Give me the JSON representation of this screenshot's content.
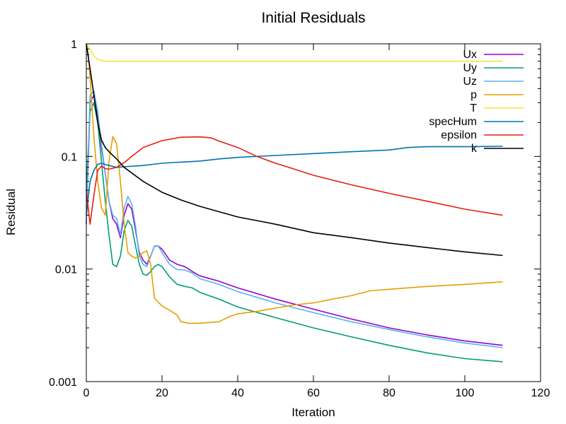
{
  "chart_data": {
    "type": "line",
    "title": "Initial Residuals",
    "xlabel": "Iteration",
    "ylabel": "Residual",
    "xlim": [
      0,
      120
    ],
    "ylim": [
      0.001,
      1
    ],
    "yscale": "log",
    "grid": false,
    "legend_position": "top-right",
    "x_ticks": [
      0,
      20,
      40,
      60,
      80,
      100,
      120
    ],
    "x_tick_labels": [
      "0",
      "20",
      "40",
      "60",
      "80",
      "100",
      "120"
    ],
    "y_ticks": [
      0.001,
      0.01,
      0.1,
      1
    ],
    "y_tick_labels": [
      "0.001",
      "0.01",
      "0.1",
      "1"
    ],
    "series": [
      {
        "name": "Ux",
        "color": "#9400d3",
        "points": [
          [
            0,
            0.025
          ],
          [
            1,
            0.3
          ],
          [
            2,
            0.35
          ],
          [
            3,
            0.22
          ],
          [
            4,
            0.12
          ],
          [
            5,
            0.07
          ],
          [
            6,
            0.04
          ],
          [
            7,
            0.028
          ],
          [
            8,
            0.025
          ],
          [
            9,
            0.019
          ],
          [
            10,
            0.03
          ],
          [
            11,
            0.038
          ],
          [
            12,
            0.034
          ],
          [
            13,
            0.022
          ],
          [
            14,
            0.014
          ],
          [
            15,
            0.012
          ],
          [
            16,
            0.011
          ],
          [
            17,
            0.013
          ],
          [
            18,
            0.016
          ],
          [
            19,
            0.016
          ],
          [
            20,
            0.015
          ],
          [
            22,
            0.012
          ],
          [
            24,
            0.011
          ],
          [
            26,
            0.0105
          ],
          [
            28,
            0.0095
          ],
          [
            30,
            0.0087
          ],
          [
            35,
            0.0078
          ],
          [
            40,
            0.0068
          ],
          [
            50,
            0.0054
          ],
          [
            60,
            0.0044
          ],
          [
            70,
            0.0036
          ],
          [
            80,
            0.003
          ],
          [
            90,
            0.0026
          ],
          [
            100,
            0.0023
          ],
          [
            110,
            0.0021
          ]
        ]
      },
      {
        "name": "Uy",
        "color": "#009e73",
        "points": [
          [
            0,
            0.05
          ],
          [
            1,
            0.25
          ],
          [
            2,
            0.3
          ],
          [
            3,
            0.2
          ],
          [
            4,
            0.09
          ],
          [
            5,
            0.04
          ],
          [
            6,
            0.02
          ],
          [
            7,
            0.011
          ],
          [
            8,
            0.0105
          ],
          [
            9,
            0.013
          ],
          [
            10,
            0.022
          ],
          [
            11,
            0.027
          ],
          [
            12,
            0.024
          ],
          [
            13,
            0.016
          ],
          [
            14,
            0.011
          ],
          [
            15,
            0.009
          ],
          [
            16,
            0.0088
          ],
          [
            17,
            0.0095
          ],
          [
            18,
            0.0105
          ],
          [
            19,
            0.011
          ],
          [
            20,
            0.0105
          ],
          [
            22,
            0.0085
          ],
          [
            24,
            0.0073
          ],
          [
            26,
            0.007
          ],
          [
            28,
            0.0068
          ],
          [
            30,
            0.0062
          ],
          [
            35,
            0.0054
          ],
          [
            40,
            0.0046
          ],
          [
            50,
            0.0037
          ],
          [
            60,
            0.003
          ],
          [
            70,
            0.0025
          ],
          [
            80,
            0.0021
          ],
          [
            90,
            0.0018
          ],
          [
            100,
            0.0016
          ],
          [
            110,
            0.0015
          ]
        ]
      },
      {
        "name": "Uz",
        "color": "#56b4e9",
        "points": [
          [
            0,
            0.025
          ],
          [
            1,
            0.35
          ],
          [
            2,
            0.38
          ],
          [
            3,
            0.25
          ],
          [
            4,
            0.13
          ],
          [
            5,
            0.07
          ],
          [
            6,
            0.04
          ],
          [
            7,
            0.03
          ],
          [
            8,
            0.028
          ],
          [
            9,
            0.02
          ],
          [
            10,
            0.035
          ],
          [
            11,
            0.044
          ],
          [
            12,
            0.038
          ],
          [
            13,
            0.024
          ],
          [
            14,
            0.013
          ],
          [
            15,
            0.011
          ],
          [
            16,
            0.0105
          ],
          [
            17,
            0.013
          ],
          [
            18,
            0.016
          ],
          [
            19,
            0.016
          ],
          [
            20,
            0.014
          ],
          [
            22,
            0.011
          ],
          [
            24,
            0.0099
          ],
          [
            26,
            0.0098
          ],
          [
            28,
            0.0092
          ],
          [
            30,
            0.0082
          ],
          [
            35,
            0.0073
          ],
          [
            40,
            0.0063
          ],
          [
            50,
            0.005
          ],
          [
            60,
            0.0041
          ],
          [
            70,
            0.0034
          ],
          [
            80,
            0.0029
          ],
          [
            90,
            0.0025
          ],
          [
            100,
            0.0022
          ],
          [
            110,
            0.002
          ]
        ]
      },
      {
        "name": "p",
        "color": "#e69f00",
        "points": [
          [
            0,
            1.0
          ],
          [
            0.5,
            0.8
          ],
          [
            1,
            0.5
          ],
          [
            2,
            0.15
          ],
          [
            3,
            0.06
          ],
          [
            4,
            0.035
          ],
          [
            5,
            0.03
          ],
          [
            6,
            0.09
          ],
          [
            7,
            0.15
          ],
          [
            8,
            0.13
          ],
          [
            9,
            0.06
          ],
          [
            10,
            0.025
          ],
          [
            11,
            0.014
          ],
          [
            12,
            0.013
          ],
          [
            13,
            0.0125
          ],
          [
            14,
            0.013
          ],
          [
            15,
            0.014
          ],
          [
            16,
            0.0145
          ],
          [
            17,
            0.011
          ],
          [
            18,
            0.0055
          ],
          [
            20,
            0.0047
          ],
          [
            22,
            0.0043
          ],
          [
            24,
            0.0039
          ],
          [
            25,
            0.0034
          ],
          [
            27,
            0.0033
          ],
          [
            30,
            0.0033
          ],
          [
            35,
            0.0034
          ],
          [
            38,
            0.0038
          ],
          [
            40,
            0.004
          ],
          [
            45,
            0.0042
          ],
          [
            50,
            0.0045
          ],
          [
            55,
            0.0048
          ],
          [
            60,
            0.005
          ],
          [
            65,
            0.0054
          ],
          [
            70,
            0.0058
          ],
          [
            75,
            0.0064
          ],
          [
            80,
            0.0066
          ],
          [
            90,
            0.007
          ],
          [
            100,
            0.0073
          ],
          [
            110,
            0.0077
          ]
        ]
      },
      {
        "name": "T",
        "color": "#f0e442",
        "points": [
          [
            0,
            1.0
          ],
          [
            1,
            0.9
          ],
          [
            2,
            0.78
          ],
          [
            3,
            0.73
          ],
          [
            4,
            0.71
          ],
          [
            5,
            0.7
          ],
          [
            10,
            0.7
          ],
          [
            20,
            0.7
          ],
          [
            40,
            0.7
          ],
          [
            60,
            0.7
          ],
          [
            80,
            0.7
          ],
          [
            100,
            0.7
          ],
          [
            110,
            0.7
          ]
        ]
      },
      {
        "name": "specHum",
        "color": "#0072b2",
        "points": [
          [
            0,
            0.03
          ],
          [
            1,
            0.06
          ],
          [
            2,
            0.075
          ],
          [
            3,
            0.085
          ],
          [
            4,
            0.087
          ],
          [
            5,
            0.085
          ],
          [
            6,
            0.083
          ],
          [
            8,
            0.08
          ],
          [
            10,
            0.081
          ],
          [
            15,
            0.083
          ],
          [
            20,
            0.087
          ],
          [
            25,
            0.089
          ],
          [
            30,
            0.091
          ],
          [
            35,
            0.095
          ],
          [
            40,
            0.098
          ],
          [
            50,
            0.102
          ],
          [
            60,
            0.106
          ],
          [
            70,
            0.11
          ],
          [
            80,
            0.114
          ],
          [
            85,
            0.12
          ],
          [
            90,
            0.122
          ],
          [
            100,
            0.122
          ],
          [
            110,
            0.123
          ]
        ]
      },
      {
        "name": "epsilon",
        "color": "#e51e10",
        "points": [
          [
            0,
            0.05
          ],
          [
            1,
            0.025
          ],
          [
            2,
            0.045
          ],
          [
            3,
            0.075
          ],
          [
            4,
            0.082
          ],
          [
            5,
            0.078
          ],
          [
            6,
            0.077
          ],
          [
            8,
            0.08
          ],
          [
            10,
            0.088
          ],
          [
            12,
            0.1
          ],
          [
            15,
            0.12
          ],
          [
            20,
            0.138
          ],
          [
            25,
            0.148
          ],
          [
            30,
            0.149
          ],
          [
            33,
            0.146
          ],
          [
            35,
            0.137
          ],
          [
            40,
            0.12
          ],
          [
            45,
            0.1
          ],
          [
            50,
            0.087
          ],
          [
            55,
            0.077
          ],
          [
            60,
            0.068
          ],
          [
            70,
            0.056
          ],
          [
            80,
            0.047
          ],
          [
            90,
            0.04
          ],
          [
            100,
            0.034
          ],
          [
            110,
            0.03
          ]
        ]
      },
      {
        "name": "k",
        "color": "#000000",
        "points": [
          [
            0,
            1.0
          ],
          [
            1,
            0.6
          ],
          [
            2,
            0.35
          ],
          [
            3,
            0.2
          ],
          [
            4,
            0.14
          ],
          [
            5,
            0.12
          ],
          [
            6,
            0.11
          ],
          [
            8,
            0.095
          ],
          [
            10,
            0.08
          ],
          [
            15,
            0.06
          ],
          [
            20,
            0.048
          ],
          [
            25,
            0.041
          ],
          [
            30,
            0.036
          ],
          [
            40,
            0.029
          ],
          [
            50,
            0.025
          ],
          [
            60,
            0.021
          ],
          [
            70,
            0.019
          ],
          [
            80,
            0.017
          ],
          [
            90,
            0.0155
          ],
          [
            100,
            0.0142
          ],
          [
            110,
            0.0132
          ]
        ]
      }
    ]
  }
}
